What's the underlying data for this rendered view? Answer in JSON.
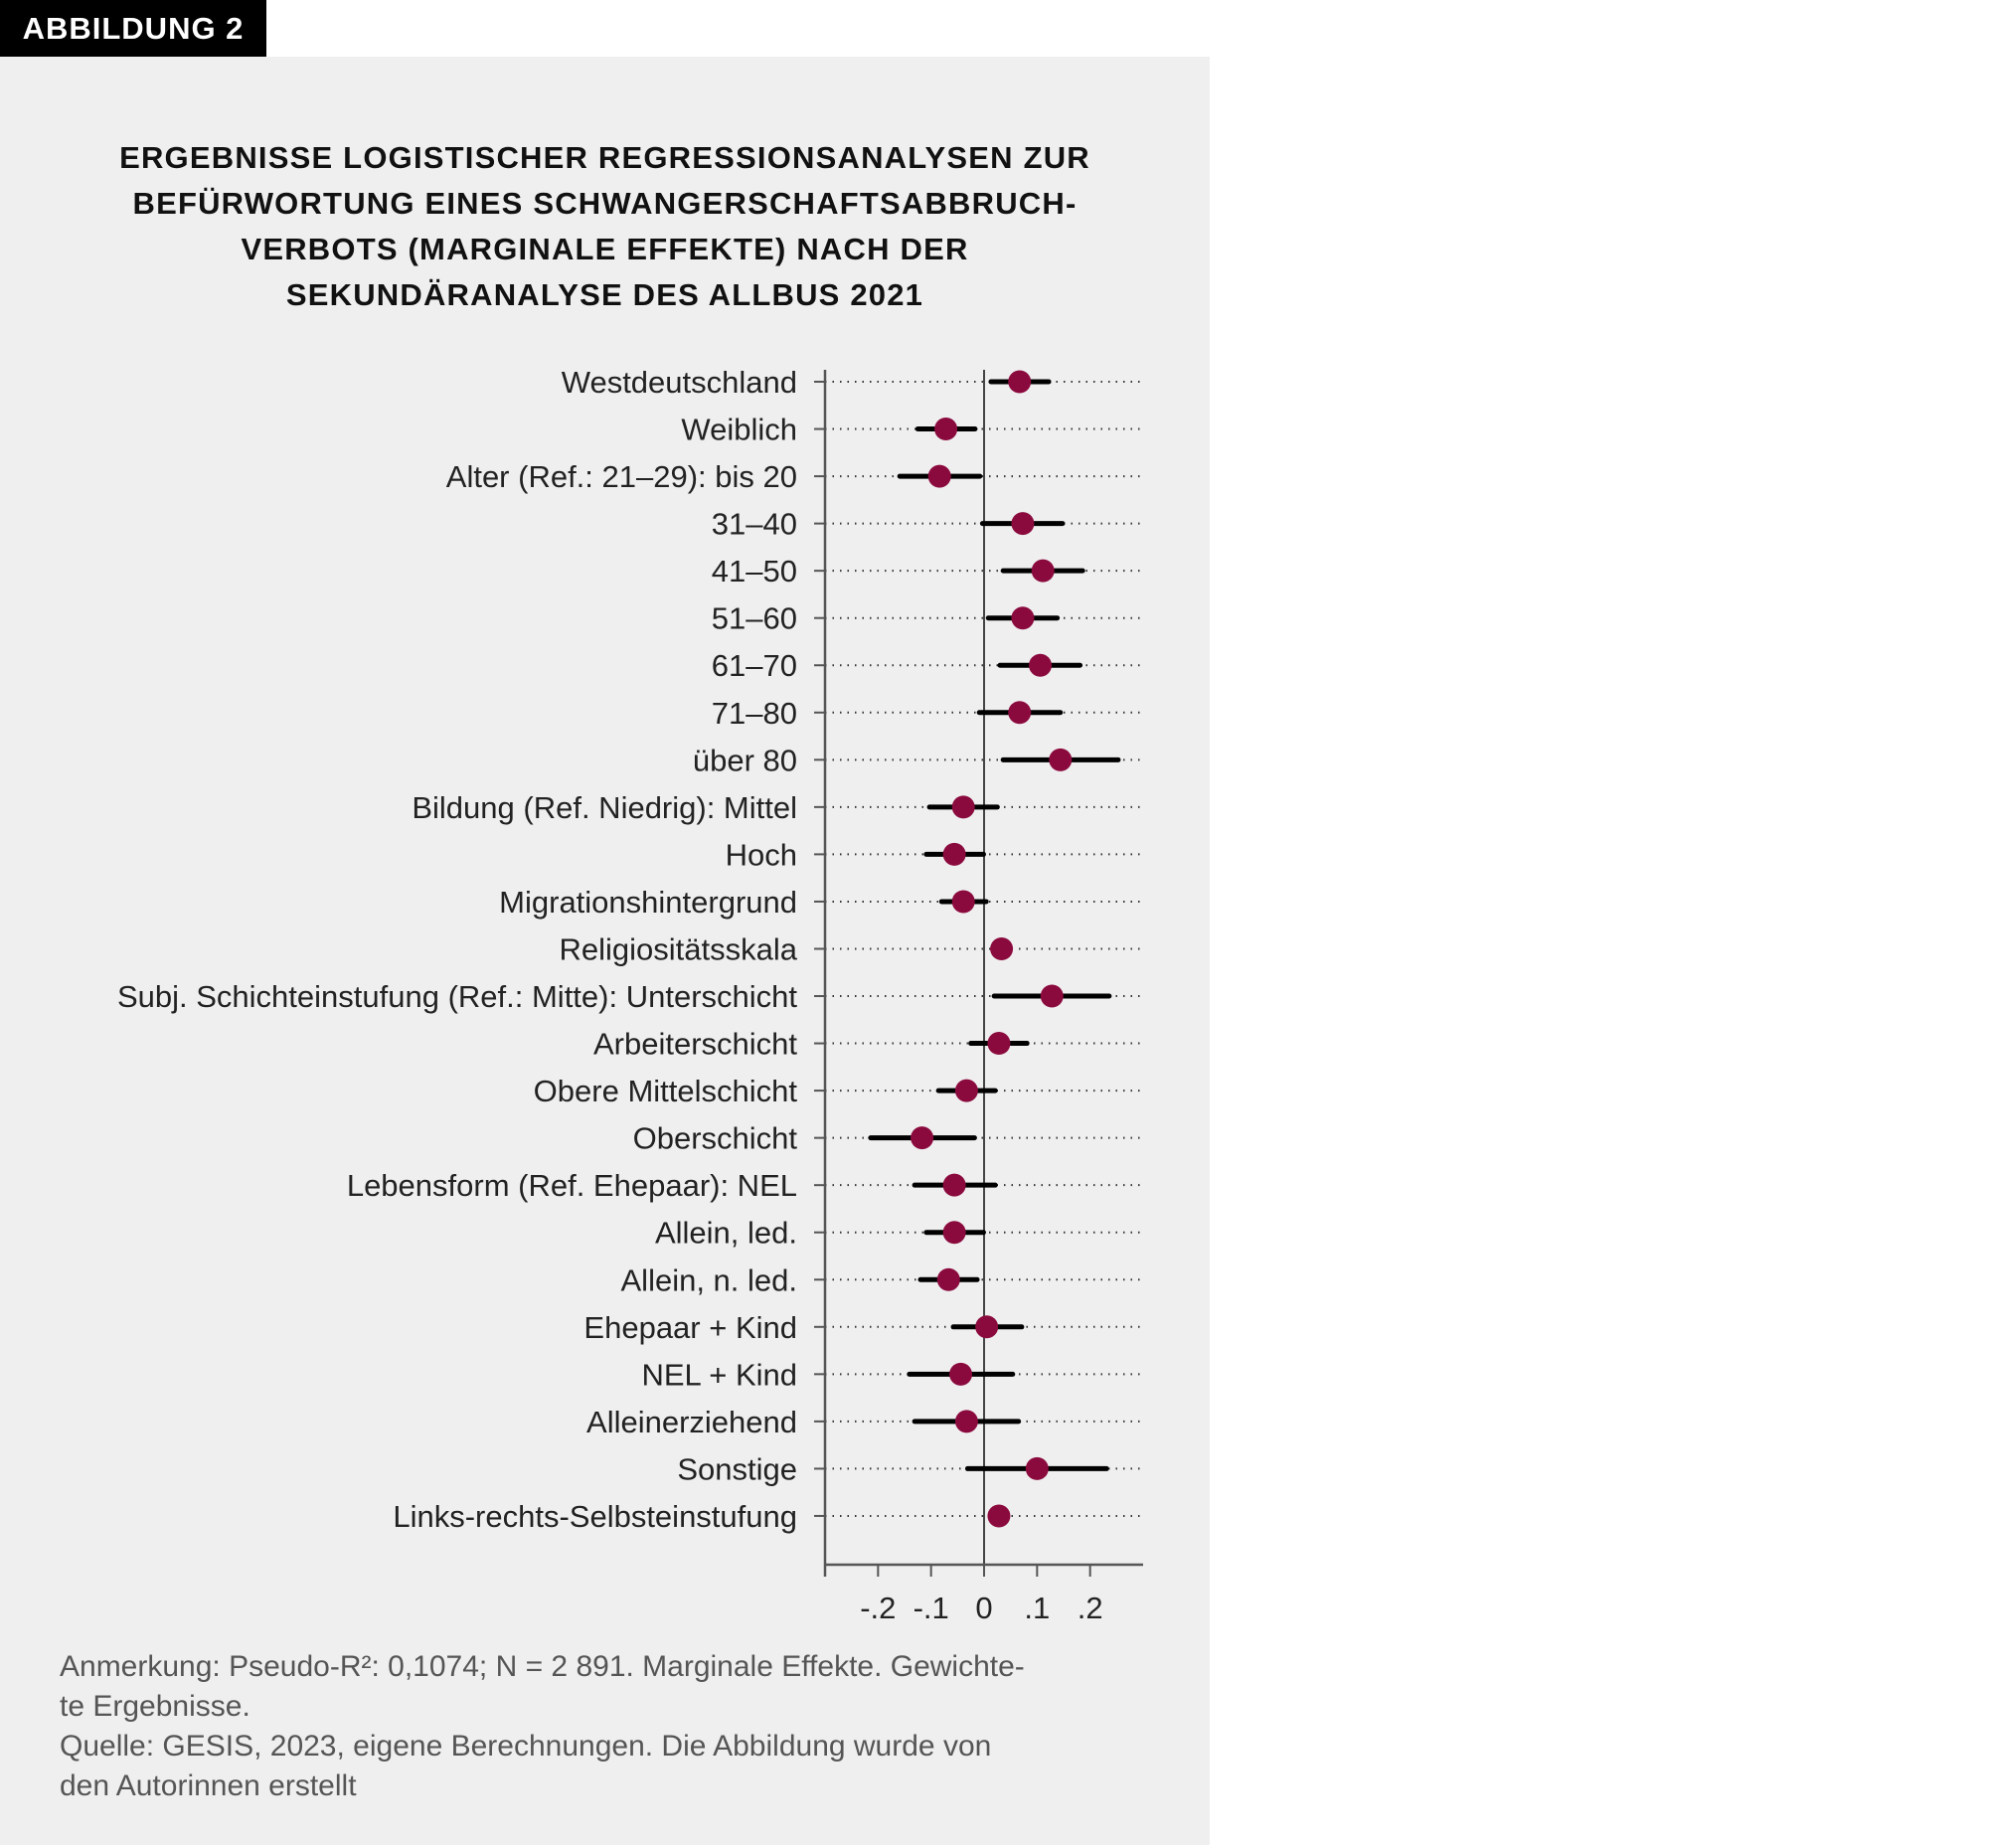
{
  "figure_label": "ABBILDUNG 2",
  "title_lines": [
    "ERGEBNISSE LOGISTISCHER REGRESSIONSANALYSEN ZUR",
    "BEFÜRWORTUNG EINES SCHWANGERSCHAFTSABBRUCH-",
    "VERBOTS (MARGINALE EFFEKTE) NACH DER",
    "SEKUNDÄRANALYSE DES ALLBUS 2021"
  ],
  "note_lines": [
    "Anmerkung: Pseudo-R²: 0,1074; N = 2 891. Marginale Effekte. Gewichte-",
    "te Ergebnisse.",
    "Quelle: GESIS, 2023, eigene Berechnungen. Die Abbildung wurde von",
    "den Autorinnen erstellt"
  ],
  "chart_data": {
    "type": "coefficient-plot",
    "title": "ERGEBNISSE LOGISTISCHER REGRESSIONSANALYSEN ZUR BEFÜRWORTUNG EINES SCHWANGERSCHAFTSABBRUCH-VERBOTS (MARGINALE EFFEKTE) NACH DER SEKUNDÄRANALYSE DES ALLBUS 2021",
    "xlim": [
      -0.3,
      0.3
    ],
    "x_ticks": [
      -0.3,
      -0.2,
      -0.1,
      0,
      0.1,
      0.2
    ],
    "x_tick_labels": [
      "",
      "-.2",
      "-.1",
      "0",
      ".1",
      ".2"
    ],
    "reference_line": 0,
    "grid": "dotted horizontal lines per row",
    "colors": {
      "point": "#8b0a3e",
      "interval": "#000000",
      "background": "#efefef"
    },
    "rows": [
      {
        "label": "Westdeutschland",
        "estimate": 0.067,
        "ci": [
          0.013,
          0.122
        ]
      },
      {
        "label": "Weiblich",
        "estimate": -0.072,
        "ci": [
          -0.125,
          -0.017
        ]
      },
      {
        "label": "Alter (Ref.: 21–29): bis 20",
        "estimate": -0.084,
        "ci": [
          -0.159,
          -0.008
        ]
      },
      {
        "label": "31–40",
        "estimate": 0.073,
        "ci": [
          -0.003,
          0.148
        ]
      },
      {
        "label": "41–50",
        "estimate": 0.111,
        "ci": [
          0.036,
          0.186
        ]
      },
      {
        "label": "51–60",
        "estimate": 0.073,
        "ci": [
          0.008,
          0.138
        ]
      },
      {
        "label": "61–70",
        "estimate": 0.106,
        "ci": [
          0.03,
          0.181
        ]
      },
      {
        "label": "71–80",
        "estimate": 0.067,
        "ci": [
          -0.009,
          0.144
        ]
      },
      {
        "label": "über 80",
        "estimate": 0.144,
        "ci": [
          0.036,
          0.253
        ]
      },
      {
        "label": "Bildung (Ref. Niedrig): Mittel",
        "estimate": -0.039,
        "ci": [
          -0.103,
          0.025
        ]
      },
      {
        "label": "Hoch",
        "estimate": -0.056,
        "ci": [
          -0.109,
          -0.001
        ]
      },
      {
        "label": "Migrationshintergrund",
        "estimate": -0.039,
        "ci": [
          -0.08,
          0.004
        ]
      },
      {
        "label": "Religiositätsskala",
        "estimate": 0.033,
        "ci": [
          0.03,
          0.036
        ]
      },
      {
        "label": "Subj. Schichteinstufung (Ref.: Mitte): Unterschicht",
        "estimate": 0.128,
        "ci": [
          0.019,
          0.236
        ]
      },
      {
        "label": "Arbeiterschicht",
        "estimate": 0.028,
        "ci": [
          -0.025,
          0.081
        ]
      },
      {
        "label": "Obere Mittelschicht",
        "estimate": -0.033,
        "ci": [
          -0.086,
          0.021
        ]
      },
      {
        "label": "Oberschicht",
        "estimate": -0.117,
        "ci": [
          -0.214,
          -0.018
        ]
      },
      {
        "label": "Lebensform (Ref. Ehepaar): NEL",
        "estimate": -0.056,
        "ci": [
          -0.131,
          0.021
        ]
      },
      {
        "label": "Allein, led.",
        "estimate": -0.056,
        "ci": [
          -0.109,
          -0.001
        ]
      },
      {
        "label": "Allein, n. led.",
        "estimate": -0.067,
        "ci": [
          -0.12,
          -0.013
        ]
      },
      {
        "label": "Ehepaar + Kind",
        "estimate": 0.005,
        "ci": [
          -0.058,
          0.071
        ]
      },
      {
        "label": "NEL + Kind",
        "estimate": -0.044,
        "ci": [
          -0.141,
          0.054
        ]
      },
      {
        "label": "Alleinerziehend",
        "estimate": -0.033,
        "ci": [
          -0.131,
          0.065
        ]
      },
      {
        "label": "Sonstige",
        "estimate": 0.1,
        "ci": [
          -0.031,
          0.231
        ]
      },
      {
        "label": "Links-rechts-Selbsteinstufung",
        "estimate": 0.028,
        "ci": [
          0.025,
          0.031
        ]
      }
    ]
  }
}
